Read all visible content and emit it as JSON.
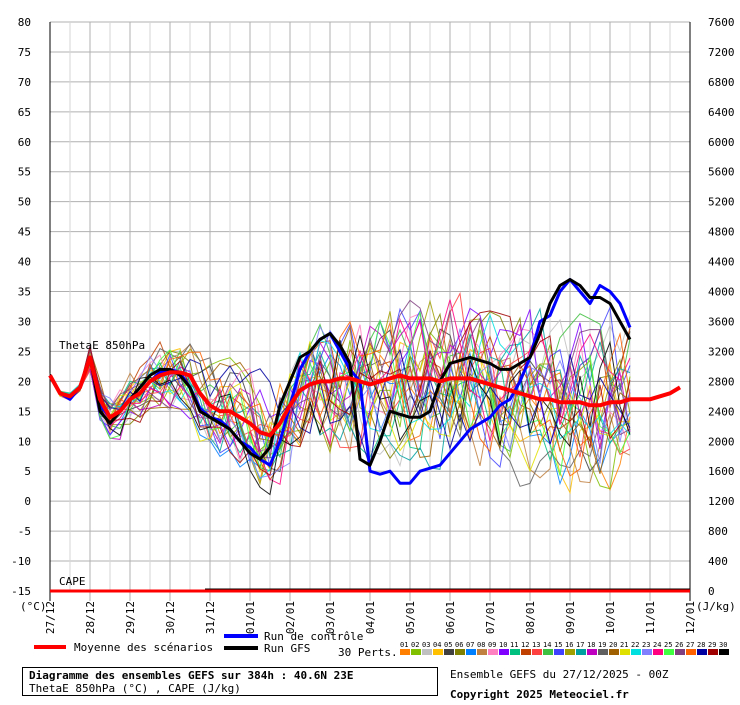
{
  "chart_data": {
    "type": "line",
    "series_label": "ThetaE 850hPa",
    "cape_label": "CAPE",
    "y_left_unit": "(°C)",
    "y_right_unit": "(J/kg)",
    "ylim": [
      -15,
      80
    ],
    "yticks_left": [
      80,
      75,
      70,
      65,
      60,
      55,
      50,
      45,
      40,
      35,
      30,
      25,
      20,
      15,
      10,
      5,
      0,
      -5,
      -10,
      -15
    ],
    "ylim_right": [
      0,
      7600
    ],
    "yticks_right": [
      7600,
      7200,
      6800,
      6400,
      6000,
      5600,
      5200,
      4800,
      4400,
      4000,
      3600,
      3200,
      2800,
      2400,
      2000,
      1600,
      1200,
      800,
      400,
      0
    ],
    "x_dates": [
      "27/12",
      "28/12",
      "29/12",
      "30/12",
      "31/12",
      "01/01",
      "02/01",
      "03/01",
      "04/01",
      "05/01",
      "06/01",
      "07/01",
      "08/01",
      "09/01",
      "10/01",
      "11/01",
      "12/01"
    ],
    "x_step_hours": 6,
    "mean": {
      "name": "Moyenne des scénarios",
      "color": "#ff0000",
      "values": [
        21,
        18,
        17.5,
        19,
        24,
        17,
        14,
        15,
        17,
        18,
        20,
        21,
        21.5,
        21.5,
        21,
        18,
        16,
        15,
        15,
        14,
        13,
        11.5,
        11,
        13,
        16,
        18.5,
        19.5,
        20,
        20,
        20.5,
        20.5,
        20,
        19.5,
        20,
        20.5,
        21,
        20.5,
        20.5,
        20.5,
        20,
        20.5,
        20.5,
        20.5,
        20,
        19.5,
        19,
        18.5,
        18,
        17.5,
        17,
        17,
        16.5,
        16.5,
        16.5,
        16,
        16,
        16.5,
        16.5,
        17,
        17,
        17,
        17.5,
        18,
        19
      ]
    },
    "control": {
      "name": "Run de contrôle",
      "color": "#0000ff",
      "values": [
        21,
        18,
        17,
        19,
        24,
        16,
        14,
        15,
        17,
        18,
        20,
        21.5,
        22,
        21.5,
        19,
        15.5,
        14,
        13.5,
        12,
        10,
        9,
        7,
        6,
        10,
        16,
        22,
        25,
        27,
        28,
        25,
        22,
        20,
        5,
        4.5,
        5,
        3,
        3,
        5,
        5.5,
        6,
        8,
        10,
        12,
        13,
        14,
        16,
        17,
        20,
        24,
        30,
        31,
        35,
        37,
        35,
        33,
        36,
        35,
        33,
        29
      ]
    },
    "gfs": {
      "name": "Run GFS",
      "color": "#000000",
      "values": [
        21,
        18,
        17.5,
        19,
        24,
        15,
        13,
        15,
        17,
        19,
        21,
        22,
        22,
        21,
        19,
        15,
        14,
        13,
        12,
        10,
        8,
        7,
        9,
        16,
        20,
        24,
        25,
        27,
        28,
        26,
        23,
        7,
        6,
        10,
        15,
        14.5,
        14,
        14,
        15,
        20,
        23,
        23.5,
        24,
        23.5,
        23,
        22,
        22,
        23,
        24,
        28,
        33,
        36,
        37,
        36,
        34,
        34,
        33,
        30,
        27
      ]
    },
    "perturbations_label": "30 Perts.",
    "perturbation_ids": [
      "01",
      "02",
      "03",
      "04",
      "05",
      "06",
      "07",
      "08",
      "09",
      "10",
      "11",
      "12",
      "13",
      "14",
      "15",
      "16",
      "17",
      "18",
      "19",
      "20",
      "21",
      "22",
      "23",
      "24",
      "25",
      "26",
      "27",
      "28",
      "29",
      "30"
    ],
    "perturbation_colors": [
      "#ff8000",
      "#80c000",
      "#c0c0c0",
      "#ffc000",
      "#404040",
      "#808000",
      "#0080ff",
      "#c08040",
      "#ff80c0",
      "#8000ff",
      "#00c080",
      "#c04000",
      "#ff4040",
      "#40c040",
      "#4040ff",
      "#a0a000",
      "#00a0a0",
      "#c000c0",
      "#606060",
      "#a06000",
      "#e0e000",
      "#00e0e0",
      "#8080ff",
      "#ff0080",
      "#40ff40",
      "#804080",
      "#ff6000",
      "#0000a0",
      "#a00000",
      "#000000"
    ],
    "title": "Diagramme des ensembles GEFS sur 384h : 40.6N 23E",
    "subtitle": "ThetaE 850hPa (°C) , CAPE (J/kg)",
    "run_info": "Ensemble GEFS du 27/12/2025 - 00Z",
    "copyright": "Copyright 2025 Meteociel.fr"
  }
}
